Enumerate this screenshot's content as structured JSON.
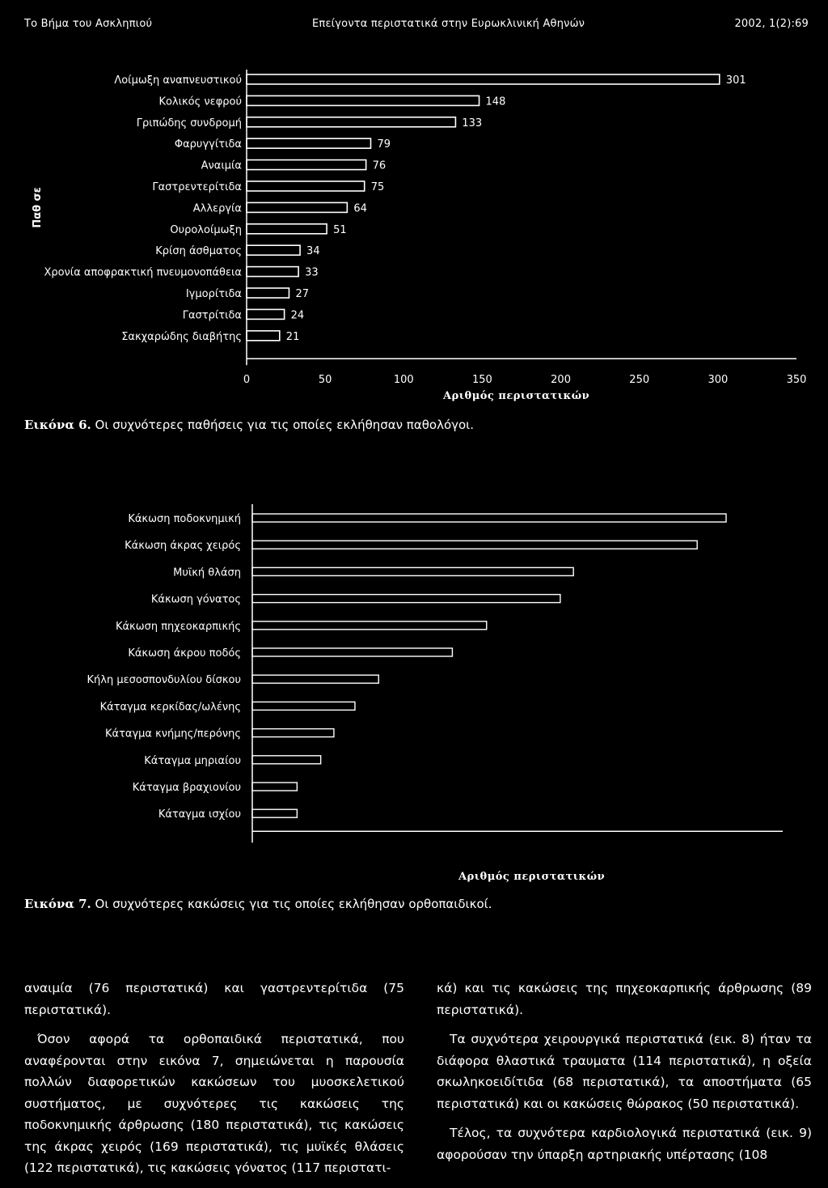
{
  "header": {
    "left": "Το Βήμα του Ασκληπιού",
    "center": "Επείγοντα περιστατικά στην Ευρωκλινική Αθηνών",
    "right": "2002, 1(2):69"
  },
  "chart_data": [
    {
      "type": "bar",
      "orientation": "horizontal",
      "title": "",
      "ylabel": "Παθ σε",
      "xlabel": "Αριθμός περιστατικών",
      "xlim": [
        0,
        350
      ],
      "xticks": [
        "0",
        "50",
        "100",
        "150",
        "200",
        "250",
        "300",
        "350"
      ],
      "categories": [
        "Λοίμωξη αναπνευστικού",
        "Κολικός νεφρού",
        "Γριπώδης συνδρομή",
        "Φαρυγγίτιδα",
        "Αναιμία",
        "Γαστρεντερίτιδα",
        "Αλλεργία",
        "Ουρολοίμωξη",
        "Κρίση άσθματος",
        "Χρονία αποφρακτική πνευμονοπάθεια",
        "Ιγμορίτιδα",
        "Γαστρίτιδα",
        "Σακχαρώδης διαβήτης"
      ],
      "values": [
        301,
        148,
        133,
        79,
        76,
        75,
        64,
        51,
        34,
        33,
        27,
        24,
        21
      ],
      "labels": [
        "301",
        "148",
        "133",
        "79",
        "76",
        "75",
        "64",
        "51",
        "34",
        "33",
        "27",
        "24",
        "21"
      ]
    },
    {
      "type": "bar",
      "orientation": "horizontal",
      "title": "",
      "xlabel": "Αριθμός περιστατικών",
      "categories": [
        "Κάκωση ποδοκνημική",
        "Κάκωση άκρας χειρός",
        "Μυϊκή θλάση",
        "Κάκωση γόνατος",
        "Κάκωση πηχεοκαρπικής",
        "Κάκωση άκρου ποδός",
        "Κήλη μεσοσπονδυλίου δίσκου",
        "Κάταγμα κερκίδας/ωλένης",
        "Κάταγμα κνήμης/περόνης",
        "Κάταγμα μηριαίου",
        "Κάταγμα βραχιονίου",
        "Κάταγμα ισχίου"
      ],
      "values": [
        180,
        169,
        122,
        117,
        89,
        76,
        48,
        39,
        31,
        26,
        17,
        17
      ]
    }
  ],
  "captions": {
    "fig6_label": "Εικόνα 6.",
    "fig6_text": " Οι συχνότερες παθήσεις για τις οποίες εκλήθησαν παθολόγοι.",
    "fig7_label": "Εικόνα 7.",
    "fig7_text": " Οι συχνότερες κακώσεις για τις οποίες εκλήθησαν ορθοπαιδικοί."
  },
  "body": {
    "left_p1": "αναιμία (76 περιστατικά) και γαστρεντερίτιδα (75 περιστατικά).",
    "left_p2": "Όσον αφορά τα ορθοπαιδικά περιστατικά, που αναφέρονται στην εικόνα 7, σημειώνεται η παρουσία πολλών διαφορετικών κακώσεων του μυοσκελετικού συστήματος, με συχνότερες τις κακώσεις της ποδοκνημικής άρθρωσης (180 περιστατικά), τις κακώσεις της άκρας χειρός (169 περιστατικά), τις μυϊκές θλάσεις (122 περιστατικά), τις κακώσεις γόνατος (117 περιστατι-",
    "right_p1": "κά) και τις κακώσεις της πηχεοκαρπικής άρθρωσης (89 περιστατικά).",
    "right_p2": "Τα συχνότερα χειρουργικά περιστατικά (εικ. 8) ήταν τα διάφορα θλαστικά τραυματα (114 περιστατικά), η οξεία σκωληκοειδίτιδα (68 περιστατικά), τα αποστήματα (65 περιστατικά) και οι κακώσεις θώρακος (50 περιστατικά).",
    "right_p3": "Τέλος, τα συχνότερα καρδιολογικά περιστατικά (εικ. 9) αφορούσαν την ύπαρξη αρτηριακής υπέρτασης (108"
  }
}
